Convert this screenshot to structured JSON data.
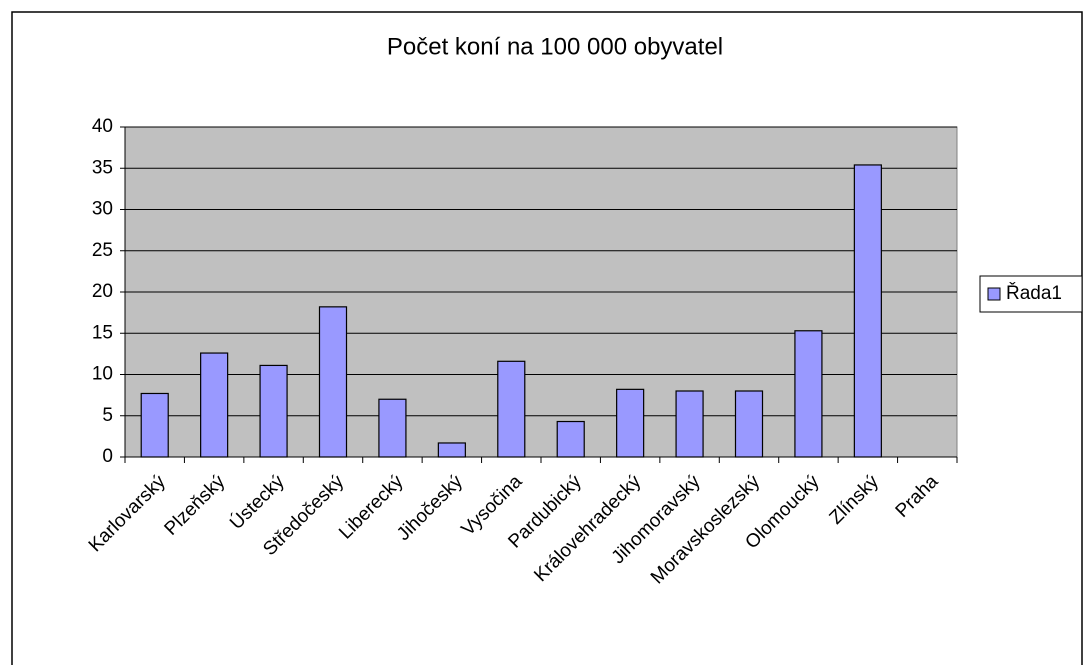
{
  "chart_data": {
    "type": "bar",
    "title": "Počet koní na 100 000 obyvatel",
    "categories": [
      "Karlovarský",
      "Plzeňský",
      "Ústecký",
      "Středočeský",
      "Liberecký",
      "Jihočeský",
      "Vysočina",
      "Pardubický",
      "Královehradecký",
      "Jihomoravský",
      "Moravskoslezský",
      "Olomoucký",
      "Zlínský",
      "Praha"
    ],
    "series": [
      {
        "name": "Řada1",
        "color": "#9999ff",
        "values": [
          7.7,
          12.6,
          11.1,
          18.2,
          7.0,
          1.7,
          11.6,
          4.3,
          8.2,
          8.0,
          8.0,
          15.3,
          35.4,
          0
        ]
      }
    ],
    "ylim": [
      0,
      40
    ],
    "yticks": [
      0,
      5,
      10,
      15,
      20,
      25,
      30,
      35,
      40
    ],
    "grid": true,
    "legend": "right"
  }
}
